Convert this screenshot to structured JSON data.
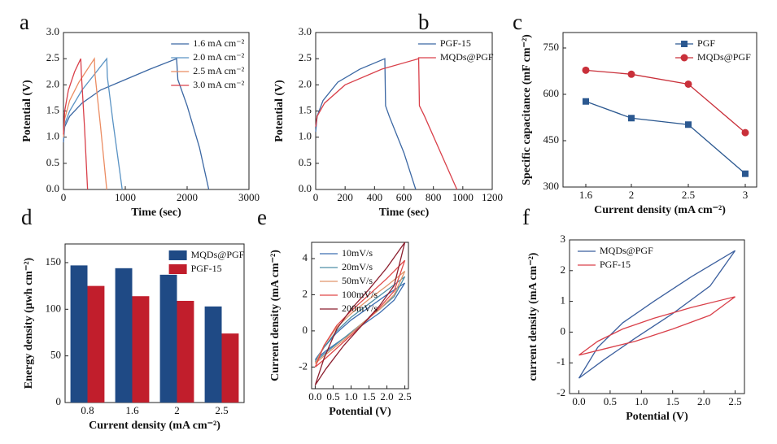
{
  "chart_data": [
    {
      "type": "line",
      "label": "a",
      "xlabel": "Time (sec)",
      "ylabel": "Potential (V)",
      "legend": "upper right",
      "xlim": [
        0,
        3000
      ],
      "xticks": [
        0,
        1000,
        2000,
        3000
      ],
      "ylim": [
        0,
        3
      ],
      "yticks": [
        {
          "value": 0,
          "label": "0.0"
        },
        0.5,
        {
          "value": 1,
          "label": "1.0"
        },
        1.5,
        {
          "value": 2,
          "label": "2.0"
        },
        2.5,
        {
          "value": 3,
          "label": "3.0"
        }
      ],
      "series": [
        {
          "name": "1.6 mA cm⁻²",
          "color": "#3b67a3",
          "x": [
            0,
            20,
            100,
            300,
            600,
            1000,
            1400,
            1830,
            1850,
            2000,
            2200,
            2350
          ],
          "values": [
            0.9,
            1.2,
            1.4,
            1.65,
            1.9,
            2.1,
            2.3,
            2.5,
            2.1,
            1.6,
            0.8,
            0
          ]
        },
        {
          "name": "2.0 mA cm⁻²",
          "color": "#5a93c4",
          "x": [
            0,
            20,
            100,
            300,
            500,
            700,
            710,
            800,
            950
          ],
          "values": [
            0.95,
            1.25,
            1.5,
            1.9,
            2.2,
            2.5,
            2.15,
            1.3,
            0
          ]
        },
        {
          "name": "2.5 mA cm⁻²",
          "color": "#eb8c62",
          "x": [
            0,
            20,
            100,
            250,
            500,
            510,
            600,
            700
          ],
          "values": [
            1.0,
            1.35,
            1.7,
            2.05,
            2.5,
            2.2,
            1.2,
            0
          ]
        },
        {
          "name": "3.0 mA cm⁻²",
          "color": "#d9404a",
          "x": [
            0,
            20,
            80,
            180,
            280,
            290,
            340,
            390
          ],
          "values": [
            1.05,
            1.5,
            1.9,
            2.25,
            2.5,
            2.2,
            1.2,
            0
          ]
        }
      ]
    },
    {
      "type": "line",
      "label": "b",
      "xlabel": "Time (sec)",
      "ylabel": "Potential (V)",
      "legend": "upper right",
      "xlim": [
        0,
        1200
      ],
      "xticks": [
        0,
        200,
        400,
        600,
        800,
        1000,
        1200
      ],
      "ylim": [
        0,
        3
      ],
      "yticks": [
        {
          "value": 0,
          "label": "0.0"
        },
        0.5,
        {
          "value": 1,
          "label": "1.0"
        },
        1.5,
        {
          "value": 2,
          "label": "2.0"
        },
        2.5,
        {
          "value": 3,
          "label": "3.0"
        }
      ],
      "series": [
        {
          "name": "PGF-15",
          "color": "#3b67a3",
          "x": [
            0,
            10,
            50,
            150,
            300,
            470,
            475,
            500,
            600,
            680
          ],
          "values": [
            1.1,
            1.4,
            1.7,
            2.05,
            2.3,
            2.5,
            1.6,
            1.4,
            0.7,
            0
          ]
        },
        {
          "name": "MQDs@PGF",
          "color": "#d9404a",
          "x": [
            0,
            10,
            60,
            200,
            450,
            700,
            705,
            740,
            850,
            960
          ],
          "values": [
            1.2,
            1.4,
            1.65,
            2.0,
            2.3,
            2.5,
            1.6,
            1.4,
            0.7,
            0
          ]
        }
      ]
    },
    {
      "type": "line",
      "label": "c",
      "xlabel": "Current density (mA cm⁻²)",
      "ylabel": "Specific capacitance (mF cm⁻²)",
      "legend": "upper right",
      "x": [
        1.6,
        2,
        2.5,
        3
      ],
      "xlim": [
        1.4,
        3.1
      ],
      "xticks": [
        1.6,
        2,
        2.5,
        3
      ],
      "ylim": [
        300,
        800
      ],
      "yticks": [
        300,
        450,
        600,
        750
      ],
      "series": [
        {
          "name": "PGF",
          "color": "#2b5890",
          "marker": "square",
          "values": [
            577,
            523,
            502,
            343
          ]
        },
        {
          "name": "MQDs@PGF",
          "color": "#c9303a",
          "marker": "circle",
          "values": [
            678,
            665,
            633,
            476
          ]
        }
      ]
    },
    {
      "type": "bar",
      "label": "d",
      "xlabel": "Current density (mA cm⁻²)",
      "ylabel": "Energy density (μwh cm⁻²)",
      "legend": "upper right",
      "categories": [
        "0.8",
        "1.6",
        "2",
        "2.5"
      ],
      "ylim": [
        0,
        170
      ],
      "yticks": [
        0,
        50,
        100,
        150
      ],
      "series": [
        {
          "name": "MQDs@PGF",
          "color": "#1f4a85",
          "values": [
            147,
            144,
            137,
            103
          ]
        },
        {
          "name": "PGF-15",
          "color": "#c11e2c",
          "values": [
            125,
            114,
            109,
            74
          ]
        }
      ]
    },
    {
      "type": "line",
      "label": "e",
      "xlabel": "Potential (V)",
      "ylabel": "Current density (mA cm⁻²)",
      "legend": "upper left",
      "xlim": [
        -0.1,
        2.6
      ],
      "xticks": [
        {
          "value": 0,
          "label": "0.0"
        },
        0.5,
        {
          "value": 1,
          "label": "1.0"
        },
        1.5,
        {
          "value": 2,
          "label": "2.0"
        },
        2.5
      ],
      "ylim": [
        -3.2,
        4.9
      ],
      "yticks": [
        -2,
        0,
        2,
        4
      ],
      "series": [
        {
          "name": "10mV/s",
          "color": "#3c6db0",
          "x": [
            0,
            0.25,
            0.6,
            1.0,
            1.5,
            2.0,
            2.5,
            2.2,
            1.8,
            1.3,
            0.8,
            0.3,
            0
          ],
          "values": [
            -1.6,
            -0.9,
            -0.1,
            0.6,
            1.3,
            2.0,
            2.65,
            1.7,
            1.0,
            0.3,
            -0.4,
            -1.1,
            -1.6
          ]
        },
        {
          "name": "20mV/s",
          "color": "#4f8fa6",
          "x": [
            0,
            0.25,
            0.6,
            1.0,
            1.5,
            2.0,
            2.5,
            2.2,
            1.8,
            1.3,
            0.8,
            0.3,
            0
          ],
          "values": [
            -1.7,
            -0.9,
            0,
            0.75,
            1.5,
            2.25,
            3.0,
            1.9,
            1.2,
            0.4,
            -0.4,
            -1.2,
            -1.7
          ]
        },
        {
          "name": "50mV/s",
          "color": "#e0956a",
          "x": [
            0,
            0.25,
            0.6,
            1.0,
            1.5,
            2.0,
            2.5,
            2.2,
            1.8,
            1.3,
            0.8,
            0.3,
            0
          ],
          "values": [
            -1.8,
            -0.8,
            0.2,
            0.95,
            1.75,
            2.5,
            3.3,
            2.0,
            1.2,
            0.4,
            -0.5,
            -1.3,
            -1.8
          ]
        },
        {
          "name": "100mV/s",
          "color": "#e04848",
          "x": [
            0,
            0.25,
            0.6,
            1.0,
            1.5,
            2.0,
            2.5,
            2.2,
            1.8,
            1.3,
            0.8,
            0.3,
            0
          ],
          "values": [
            -2.0,
            -0.8,
            0.3,
            1.1,
            2.0,
            2.9,
            3.9,
            2.2,
            1.3,
            0.3,
            -0.6,
            -1.5,
            -2.0
          ]
        },
        {
          "name": "200mV/s",
          "color": "#8b1e2e",
          "x": [
            0,
            0.25,
            0.6,
            1.0,
            1.5,
            2.0,
            2.5,
            2.2,
            1.8,
            1.3,
            0.8,
            0.3,
            0
          ],
          "values": [
            -3.0,
            -1.5,
            0.1,
            1.2,
            2.3,
            3.5,
            4.9,
            2.5,
            1.4,
            0.3,
            -0.8,
            -2.1,
            -3.0
          ]
        }
      ]
    },
    {
      "type": "line",
      "label": "f",
      "xlabel": "Potential (V)",
      "ylabel": "current density (mA cm⁻²)",
      "legend": "upper left",
      "xlim": [
        -0.15,
        2.65
      ],
      "xticks": [
        {
          "value": 0,
          "label": "0.0"
        },
        0.5,
        {
          "value": 1,
          "label": "1.0"
        },
        1.5,
        {
          "value": 2,
          "label": "2.0"
        },
        2.5
      ],
      "ylim": [
        -2,
        3
      ],
      "yticks": [
        -2,
        -1,
        0,
        1,
        2,
        3
      ],
      "series": [
        {
          "name": "MQDs@PGF",
          "color": "#3b5f9e",
          "x": [
            0,
            0.3,
            0.7,
            1.2,
            1.8,
            2.5,
            2.1,
            1.5,
            0.9,
            0.4,
            0
          ],
          "values": [
            -1.5,
            -0.5,
            0.3,
            1.0,
            1.8,
            2.65,
            1.5,
            0.6,
            -0.2,
            -0.9,
            -1.5
          ]
        },
        {
          "name": "PGF-15",
          "color": "#d9404a",
          "x": [
            0,
            0.3,
            0.7,
            1.2,
            1.8,
            2.5,
            2.1,
            1.5,
            0.9,
            0.4,
            0
          ],
          "values": [
            -0.75,
            -0.3,
            0.1,
            0.45,
            0.8,
            1.15,
            0.55,
            0.1,
            -0.3,
            -0.55,
            -0.75
          ]
        }
      ]
    }
  ]
}
